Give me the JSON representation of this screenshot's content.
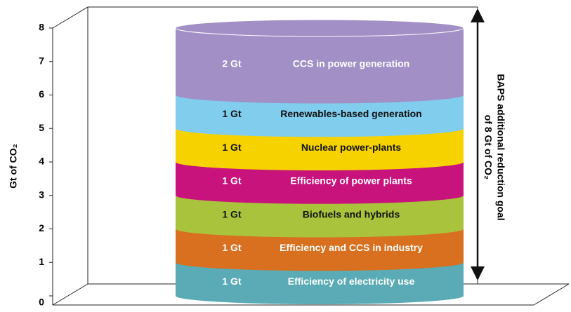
{
  "chart_data": {
    "type": "bar",
    "stacked": true,
    "categories": [
      null
    ],
    "y_label": "Gt of CO₂",
    "annotation_lines": [
      "BAPS additional reduction goal",
      "of 8 Gt of CO₂"
    ],
    "ylim": [
      0,
      8
    ],
    "yticks": [
      0,
      1,
      2,
      3,
      4,
      5,
      6,
      7,
      8
    ],
    "grid": false,
    "series": [
      {
        "name": "Efficiency of electricity use",
        "color": "#5aabb5",
        "text_color": "#ffffff",
        "values": [
          1
        ],
        "value_labels": [
          "1 Gt"
        ]
      },
      {
        "name": "Efficiency and CCS in industry",
        "color": "#d8701f",
        "text_color": "#ffffff",
        "values": [
          1
        ],
        "value_labels": [
          "1 Gt"
        ]
      },
      {
        "name": "Biofuels and hybrids",
        "color": "#a9c33c",
        "text_color": "#111111",
        "values": [
          1
        ],
        "value_labels": [
          "1 Gt"
        ]
      },
      {
        "name": "Efficiency of power plants",
        "color": "#c8137c",
        "text_color": "#ffffff",
        "values": [
          1
        ],
        "value_labels": [
          "1 Gt"
        ]
      },
      {
        "name": "Nuclear power-plants",
        "color": "#f6d300",
        "text_color": "#111111",
        "values": [
          1
        ],
        "value_labels": [
          "1 Gt"
        ]
      },
      {
        "name": "Renewables-based generation",
        "color": "#80cdee",
        "text_color": "#111111",
        "values": [
          1
        ],
        "value_labels": [
          "1 Gt"
        ]
      },
      {
        "name": "CCS in power generation",
        "color": "#a28fc6",
        "text_color": "#ffffff",
        "values": [
          2
        ],
        "value_labels": [
          "2 Gt"
        ]
      }
    ]
  }
}
